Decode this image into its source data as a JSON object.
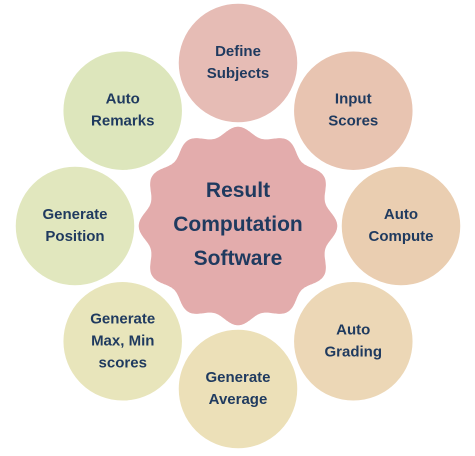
{
  "hub": {
    "lines": [
      "Result",
      "Computation",
      "Software"
    ],
    "fill": "#e0a3a3",
    "stroke": "#ffffff"
  },
  "nodes": [
    {
      "id": "define-subjects",
      "lines": [
        "Define",
        "Subjects"
      ],
      "fill": "#e3b3ab"
    },
    {
      "id": "input-scores",
      "lines": [
        "Input",
        "Scores"
      ],
      "fill": "#e5bca6"
    },
    {
      "id": "auto-compute",
      "lines": [
        "Auto",
        "Compute"
      ],
      "fill": "#e7c7a6"
    },
    {
      "id": "auto-grading",
      "lines": [
        "Auto",
        "Grading"
      ],
      "fill": "#e9d2ac"
    },
    {
      "id": "generate-average",
      "lines": [
        "Generate",
        "Average"
      ],
      "fill": "#e9dcae"
    },
    {
      "id": "generate-max-min-scores",
      "lines": [
        "Generate",
        "Max, Min",
        "scores"
      ],
      "fill": "#e5e1b2"
    },
    {
      "id": "generate-position",
      "lines": [
        "Generate",
        "Position"
      ],
      "fill": "#dde4b5"
    },
    {
      "id": "auto-remarks",
      "lines": [
        "Auto",
        "Remarks"
      ],
      "fill": "#d8e3b3"
    }
  ]
}
